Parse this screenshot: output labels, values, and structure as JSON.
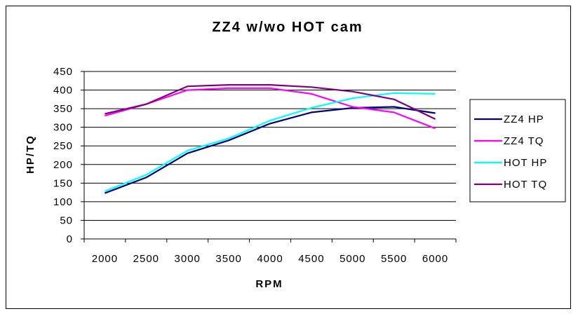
{
  "chart_data": {
    "type": "line",
    "title": "ZZ4 w/wo HOT cam",
    "xlabel": "RPM",
    "ylabel": "HP/TQ",
    "x": [
      2000,
      2500,
      3000,
      3500,
      4000,
      4500,
      5000,
      5500,
      6000
    ],
    "x_plot": [
      2000,
      2500,
      2800,
      3000,
      3250,
      3500,
      4000,
      4300,
      4500,
      4750,
      5000,
      5250,
      5500,
      5750,
      6000
    ],
    "xlim": [
      1800,
      6200
    ],
    "ylim": [
      0,
      450
    ],
    "yticks": [
      0,
      50,
      100,
      150,
      200,
      250,
      300,
      350,
      400,
      450
    ],
    "grid": true,
    "legend_position": "right",
    "series": [
      {
        "name": "ZZ4 HP",
        "color": "#000080",
        "points": [
          [
            2000,
            123
          ],
          [
            2500,
            165
          ],
          [
            3000,
            230
          ],
          [
            3500,
            265
          ],
          [
            4000,
            310
          ],
          [
            4500,
            340
          ],
          [
            5000,
            352
          ],
          [
            5500,
            355
          ],
          [
            6000,
            338
          ]
        ]
      },
      {
        "name": "ZZ4 TQ",
        "color": "#FF00FF",
        "points": [
          [
            2000,
            331
          ],
          [
            2500,
            362
          ],
          [
            3000,
            400
          ],
          [
            3500,
            405
          ],
          [
            4000,
            405
          ],
          [
            4500,
            390
          ],
          [
            5000,
            355
          ],
          [
            5500,
            340
          ],
          [
            6000,
            297
          ]
        ]
      },
      {
        "name": "HOT HP",
        "color": "#00FFFF",
        "points": [
          [
            2000,
            128
          ],
          [
            2500,
            172
          ],
          [
            3000,
            237
          ],
          [
            3500,
            270
          ],
          [
            4000,
            318
          ],
          [
            4500,
            352
          ],
          [
            5000,
            378
          ],
          [
            5500,
            392
          ],
          [
            6000,
            390
          ]
        ]
      },
      {
        "name": "HOT TQ",
        "color": "#800080",
        "points": [
          [
            2000,
            336
          ],
          [
            2500,
            362
          ],
          [
            3000,
            410
          ],
          [
            3500,
            414
          ],
          [
            4000,
            414
          ],
          [
            4500,
            408
          ],
          [
            5000,
            396
          ],
          [
            5500,
            375
          ],
          [
            6000,
            322
          ]
        ]
      }
    ]
  }
}
